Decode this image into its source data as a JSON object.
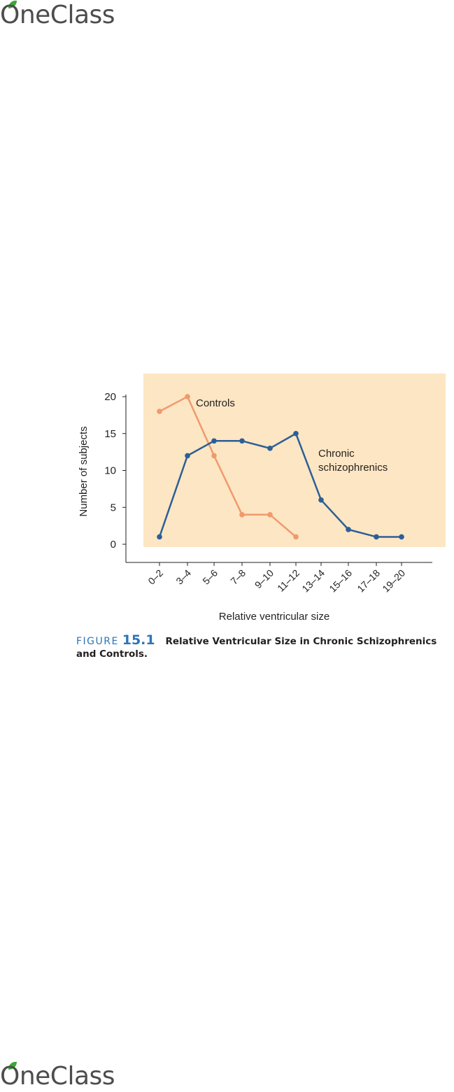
{
  "header": {
    "logo_text": "OneClass"
  },
  "footer": {
    "logo_text": "OneClass"
  },
  "colors": {
    "controls": "#ef9a6e",
    "schizophrenics": "#2c5f97",
    "background_panel": "#fde6c3",
    "caption_accent": "#2f74b5",
    "logo_leaf": "#3aa935"
  },
  "figure": {
    "label": "FIGURE",
    "number": "15.1",
    "caption": "Relative Ventricular Size in Chronic Schizophrenics and Controls."
  },
  "chart_data": {
    "type": "line",
    "categories": [
      "0–2",
      "3–4",
      "5–6",
      "7–8",
      "9–10",
      "11–12",
      "13–14",
      "15–16",
      "17–18",
      "19–20"
    ],
    "series": [
      {
        "name": "Controls",
        "values": [
          18,
          20,
          12,
          4,
          4,
          1,
          null,
          null,
          null,
          null
        ],
        "color": "#ef9a6e"
      },
      {
        "name": "Chronic schizophrenics",
        "values": [
          1,
          12,
          14,
          14,
          13,
          15,
          6,
          2,
          1,
          1
        ],
        "color": "#2c5f97"
      }
    ],
    "xlabel": "Relative ventricular size",
    "ylabel": "Number of subjects",
    "yticks": [
      "0",
      "5",
      "10",
      "15",
      "20"
    ],
    "ylim": [
      0,
      20
    ],
    "grid": false,
    "annotations": [
      {
        "text": "Controls"
      },
      {
        "text": "Chronic"
      },
      {
        "text": "schizophrenics"
      }
    ]
  }
}
